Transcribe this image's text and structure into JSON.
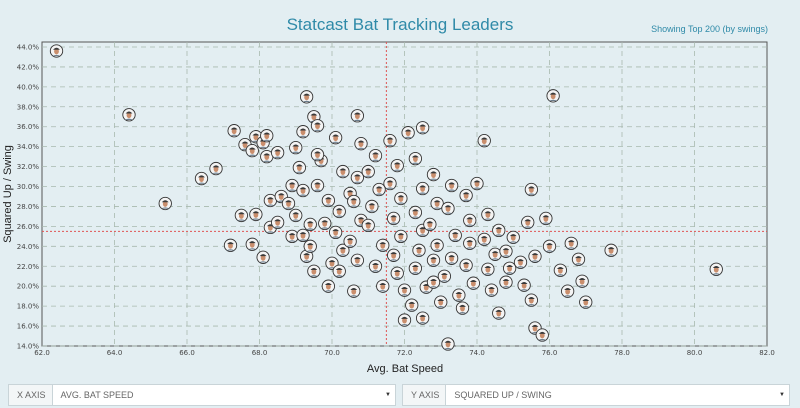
{
  "header": {
    "title": "Statcast Bat Tracking Leaders",
    "showing": "Showing Top 200 (by swings)"
  },
  "controls": {
    "x_axis_label": "X AXIS",
    "x_axis_value": "AVG. BAT SPEED",
    "y_axis_label": "Y AXIS",
    "y_axis_value": "SQUARED UP / SWING",
    "caret": "▼"
  },
  "colors": {
    "title": "#2f8aa8",
    "plot_bg": "#e3eef2",
    "grid": "#a8b9ae",
    "reference_line": "#e05555",
    "marker_ring": "#333333",
    "marker_fill": "#f4f4f4"
  },
  "chart_data": {
    "type": "scatter",
    "title": "Statcast Bat Tracking Leaders",
    "xlabel": "Avg. Bat Speed",
    "ylabel": "Squared Up / Swing",
    "xlim": [
      62,
      82
    ],
    "ylim": [
      14,
      44.5
    ],
    "xticks": [
      "62.0",
      "64.0",
      "66.0",
      "68.0",
      "70.0",
      "72.0",
      "74.0",
      "76.0",
      "78.0",
      "80.0",
      "82.0"
    ],
    "yticks": [
      "14.0%",
      "16.0%",
      "18.0%",
      "20.0%",
      "22.0%",
      "24.0%",
      "26.0%",
      "28.0%",
      "30.0%",
      "32.0%",
      "34.0%",
      "36.0%",
      "38.0%",
      "40.0%",
      "42.0%",
      "44.0%"
    ],
    "grid": true,
    "reference_lines": {
      "x": 71.5,
      "y": 25.5
    },
    "points": [
      [
        62.4,
        43.6
      ],
      [
        64.4,
        37.2
      ],
      [
        65.4,
        28.3
      ],
      [
        66.4,
        30.8
      ],
      [
        66.8,
        31.8
      ],
      [
        67.3,
        35.6
      ],
      [
        67.6,
        34.2
      ],
      [
        67.9,
        35.0
      ],
      [
        68.1,
        34.4
      ],
      [
        68.2,
        35.1
      ],
      [
        67.8,
        33.6
      ],
      [
        68.2,
        33.0
      ],
      [
        68.5,
        33.4
      ],
      [
        67.2,
        24.1
      ],
      [
        67.5,
        27.1
      ],
      [
        67.8,
        24.2
      ],
      [
        67.9,
        27.2
      ],
      [
        68.1,
        22.9
      ],
      [
        68.3,
        25.9
      ],
      [
        68.3,
        28.6
      ],
      [
        68.5,
        26.4
      ],
      [
        68.6,
        29.0
      ],
      [
        68.8,
        28.3
      ],
      [
        68.9,
        25.0
      ],
      [
        68.9,
        30.1
      ],
      [
        69.0,
        33.9
      ],
      [
        69.3,
        39.0
      ],
      [
        69.5,
        37.0
      ],
      [
        69.6,
        36.1
      ],
      [
        69.2,
        35.5
      ],
      [
        69.1,
        31.9
      ],
      [
        69.2,
        29.6
      ],
      [
        69.0,
        27.1
      ],
      [
        69.2,
        25.1
      ],
      [
        69.3,
        23.0
      ],
      [
        69.5,
        21.5
      ],
      [
        69.6,
        30.1
      ],
      [
        69.4,
        26.2
      ],
      [
        69.4,
        24.0
      ],
      [
        69.7,
        32.6
      ],
      [
        69.9,
        28.6
      ],
      [
        69.8,
        26.3
      ],
      [
        70.0,
        22.3
      ],
      [
        69.9,
        20.0
      ],
      [
        69.6,
        33.2
      ],
      [
        70.1,
        34.9
      ],
      [
        70.3,
        31.5
      ],
      [
        70.5,
        29.3
      ],
      [
        70.2,
        27.5
      ],
      [
        70.1,
        25.4
      ],
      [
        70.3,
        23.6
      ],
      [
        70.2,
        21.5
      ],
      [
        70.7,
        37.1
      ],
      [
        70.8,
        34.3
      ],
      [
        70.7,
        30.9
      ],
      [
        70.6,
        28.5
      ],
      [
        70.8,
        26.6
      ],
      [
        70.5,
        24.5
      ],
      [
        70.7,
        22.6
      ],
      [
        70.6,
        19.5
      ],
      [
        71.2,
        33.1
      ],
      [
        71.0,
        31.5
      ],
      [
        71.3,
        29.7
      ],
      [
        71.1,
        28.0
      ],
      [
        71.0,
        26.1
      ],
      [
        71.4,
        24.1
      ],
      [
        71.2,
        22.0
      ],
      [
        71.4,
        20.0
      ],
      [
        71.6,
        34.6
      ],
      [
        71.8,
        32.1
      ],
      [
        71.6,
        30.3
      ],
      [
        71.9,
        28.8
      ],
      [
        71.7,
        26.8
      ],
      [
        71.9,
        25.0
      ],
      [
        71.7,
        23.1
      ],
      [
        71.8,
        21.3
      ],
      [
        72.0,
        19.6
      ],
      [
        72.2,
        18.1
      ],
      [
        72.0,
        16.6
      ],
      [
        72.1,
        35.4
      ],
      [
        72.3,
        32.8
      ],
      [
        72.5,
        29.8
      ],
      [
        72.3,
        27.4
      ],
      [
        72.5,
        25.6
      ],
      [
        72.4,
        23.6
      ],
      [
        72.3,
        21.8
      ],
      [
        72.6,
        19.9
      ],
      [
        72.5,
        16.8
      ],
      [
        72.5,
        35.9
      ],
      [
        72.8,
        31.2
      ],
      [
        72.9,
        28.3
      ],
      [
        72.7,
        26.2
      ],
      [
        72.9,
        24.1
      ],
      [
        72.8,
        22.6
      ],
      [
        72.8,
        20.4
      ],
      [
        73.0,
        18.4
      ],
      [
        73.3,
        30.1
      ],
      [
        73.2,
        27.8
      ],
      [
        73.4,
        25.1
      ],
      [
        73.3,
        22.8
      ],
      [
        73.1,
        21.0
      ],
      [
        73.5,
        19.1
      ],
      [
        73.7,
        29.1
      ],
      [
        73.8,
        26.6
      ],
      [
        73.8,
        24.3
      ],
      [
        73.7,
        22.1
      ],
      [
        73.9,
        20.3
      ],
      [
        73.6,
        17.8
      ],
      [
        73.2,
        14.2
      ],
      [
        74.0,
        30.3
      ],
      [
        74.2,
        34.6
      ],
      [
        74.3,
        27.2
      ],
      [
        74.2,
        24.7
      ],
      [
        74.5,
        23.2
      ],
      [
        74.3,
        21.7
      ],
      [
        74.4,
        19.6
      ],
      [
        74.6,
        17.3
      ],
      [
        74.6,
        25.6
      ],
      [
        74.8,
        23.5
      ],
      [
        74.9,
        21.8
      ],
      [
        74.8,
        20.4
      ],
      [
        75.0,
        24.9
      ],
      [
        75.2,
        22.4
      ],
      [
        75.3,
        20.1
      ],
      [
        75.4,
        26.4
      ],
      [
        75.5,
        29.7
      ],
      [
        75.6,
        23.0
      ],
      [
        75.5,
        18.6
      ],
      [
        75.6,
        15.8
      ],
      [
        75.8,
        15.1
      ],
      [
        75.9,
        26.8
      ],
      [
        76.0,
        24.0
      ],
      [
        76.1,
        39.1
      ],
      [
        76.3,
        21.6
      ],
      [
        76.5,
        19.5
      ],
      [
        76.6,
        24.3
      ],
      [
        76.8,
        22.7
      ],
      [
        76.9,
        20.5
      ],
      [
        77.0,
        18.4
      ],
      [
        77.7,
        23.6
      ],
      [
        80.6,
        21.7
      ]
    ]
  }
}
